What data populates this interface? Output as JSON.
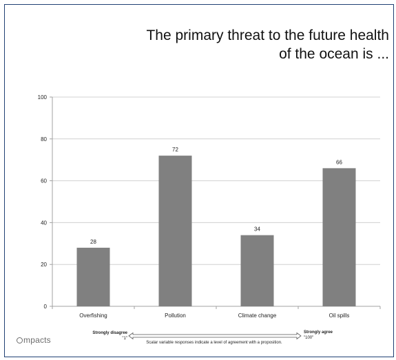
{
  "slide": {
    "title_line1": "The primary threat to the future health",
    "title_line2": "of the ocean is ...",
    "logo_text": "mpacts"
  },
  "scale_legend": {
    "left_label": "Strongly disagree",
    "left_value": "\"1\"",
    "right_label": "Strongly agree",
    "right_value": "\"100\"",
    "caption": "Scalar variable responses indicate a level of agreement with a proposition."
  },
  "colors": {
    "bar": "#808080",
    "grid": "#d0d0d0",
    "frame": "#1f3f73"
  },
  "chart_data": {
    "type": "bar",
    "title": "",
    "xlabel": "",
    "ylabel": "",
    "categories": [
      "Overfishing",
      "Pollution",
      "Climate change",
      "Oil spills"
    ],
    "values": [
      28,
      72,
      34,
      66
    ],
    "data_labels": [
      "28",
      "72",
      "34",
      "66"
    ],
    "ylim": [
      0,
      100
    ],
    "yticks": [
      0,
      20,
      40,
      60,
      80,
      100
    ],
    "grid": true,
    "legend": "none"
  }
}
